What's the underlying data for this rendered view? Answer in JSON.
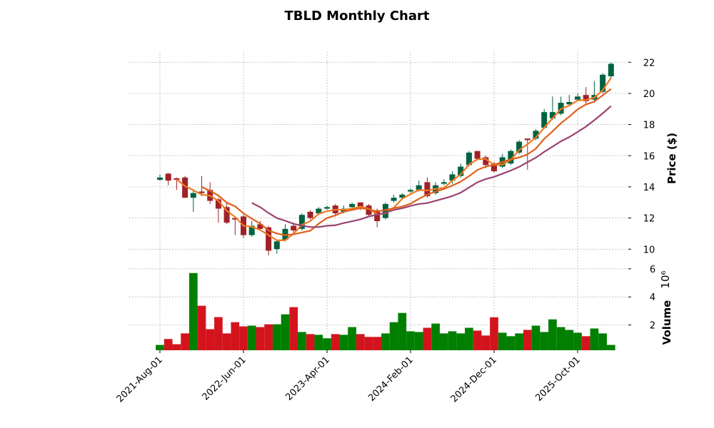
{
  "chart_data": {
    "type": "candlestick",
    "title": "TBLD Monthly Chart",
    "categories": [
      "2021-Aug-01",
      null,
      null,
      null,
      null,
      null,
      null,
      null,
      null,
      null,
      "2022-Jun-01",
      null,
      null,
      null,
      null,
      null,
      null,
      null,
      null,
      null,
      "2023-Apr-01",
      null,
      null,
      null,
      null,
      null,
      null,
      null,
      null,
      null,
      "2024-Feb-01",
      null,
      null,
      null,
      null,
      null,
      null,
      null,
      null,
      null,
      "2024-Dec-01",
      null,
      null,
      null,
      null,
      null,
      null,
      null,
      null,
      null,
      "2025-Oct-01",
      null,
      null,
      null,
      null
    ],
    "open": [
      14.45,
      14.85,
      14.55,
      14.6,
      13.3,
      13.7,
      13.8,
      13.2,
      12.7,
      12.0,
      12.1,
      10.9,
      11.6,
      11.4,
      10.0,
      10.6,
      11.5,
      11.3,
      12.4,
      12.3,
      12.6,
      12.8,
      12.4,
      12.7,
      13.0,
      12.8,
      12.5,
      12.0,
      13.1,
      13.3,
      13.7,
      13.8,
      14.3,
      13.6,
      14.2,
      14.4,
      14.7,
      15.4,
      16.3,
      15.9,
      15.5,
      15.3,
      15.5,
      16.2,
      17.1,
      17.1,
      17.8,
      18.4,
      18.7,
      19.3,
      19.6,
      19.9,
      19.6,
      20.1,
      21.1
    ],
    "high": [
      14.8,
      14.9,
      14.6,
      14.7,
      13.8,
      14.7,
      14.3,
      13.3,
      13.0,
      12.1,
      12.2,
      11.8,
      11.8,
      11.5,
      10.6,
      11.6,
      11.7,
      12.3,
      12.5,
      12.7,
      12.8,
      12.9,
      12.8,
      13.0,
      13.0,
      12.9,
      12.6,
      13.0,
      13.5,
      13.6,
      13.9,
      14.4,
      14.6,
      14.3,
      14.5,
      15.0,
      15.5,
      16.3,
      16.3,
      16.0,
      15.6,
      16.1,
      16.4,
      17.0,
      17.1,
      17.7,
      19.0,
      19.8,
      19.8,
      19.9,
      20.0,
      20.4,
      20.8,
      21.3,
      22.0
    ],
    "low": [
      14.4,
      14.1,
      13.8,
      13.3,
      12.4,
      13.4,
      12.9,
      11.7,
      11.6,
      10.9,
      10.7,
      10.8,
      11.2,
      9.6,
      9.7,
      10.5,
      11.0,
      11.2,
      11.9,
      12.2,
      12.5,
      12.1,
      12.3,
      12.6,
      12.5,
      12.1,
      11.4,
      11.9,
      13.0,
      13.2,
      13.6,
      13.7,
      13.3,
      13.5,
      14.1,
      14.2,
      14.6,
      15.3,
      15.7,
      15.2,
      14.9,
      15.2,
      15.4,
      16.1,
      15.1,
      17.0,
      17.7,
      18.3,
      18.6,
      19.2,
      19.5,
      19.3,
      19.4,
      20.0,
      21.0
    ],
    "close": [
      14.6,
      14.4,
      14.45,
      13.3,
      13.6,
      13.6,
      13.1,
      12.6,
      11.7,
      11.9,
      10.9,
      11.5,
      11.3,
      9.9,
      10.5,
      11.3,
      11.2,
      12.2,
      12.0,
      12.6,
      12.7,
      12.3,
      12.6,
      12.9,
      12.7,
      12.2,
      11.8,
      12.9,
      13.3,
      13.5,
      13.8,
      14.1,
      13.4,
      14.1,
      14.3,
      14.8,
      15.3,
      16.2,
      15.8,
      15.4,
      15.0,
      15.9,
      16.3,
      16.9,
      17.0,
      17.6,
      18.8,
      18.8,
      19.4,
      19.45,
      19.8,
      19.5,
      19.9,
      21.2,
      21.9
    ],
    "volume": [
      0.58,
      1.0,
      0.63,
      1.4,
      5.7,
      3.37,
      1.7,
      2.56,
      1.4,
      2.2,
      1.9,
      1.95,
      1.85,
      2.05,
      2.05,
      2.76,
      3.27,
      1.5,
      1.35,
      1.3,
      1.05,
      1.35,
      1.3,
      1.85,
      1.35,
      1.15,
      1.15,
      1.4,
      2.2,
      2.86,
      1.55,
      1.5,
      1.8,
      2.1,
      1.4,
      1.55,
      1.4,
      1.8,
      1.6,
      1.25,
      2.55,
      1.45,
      1.2,
      1.4,
      1.65,
      1.95,
      1.5,
      2.4,
      1.85,
      1.65,
      1.45,
      1.2,
      1.75,
      1.4,
      0.58
    ],
    "up_color": "#006340",
    "down_color": "#a02128",
    "volume_up_color": "#007f00",
    "volume_down_color": "#d3141d",
    "ylabel": "Price ($)",
    "ylim": [
      9.05,
      22.7
    ],
    "yticks": [
      10,
      12,
      14,
      16,
      18,
      20,
      22
    ],
    "volume_label": "Volume",
    "volume_offset": "10⁶",
    "volume_ylim": [
      0.2,
      6.35
    ],
    "volume_yticks": [
      2,
      4,
      6
    ],
    "moving_averages": [
      {
        "window": 3,
        "color": "#f07a22"
      },
      {
        "window": 6,
        "color": "#e0601c"
      },
      {
        "window": 12,
        "color": "#9a4273"
      }
    ],
    "grid": true
  }
}
